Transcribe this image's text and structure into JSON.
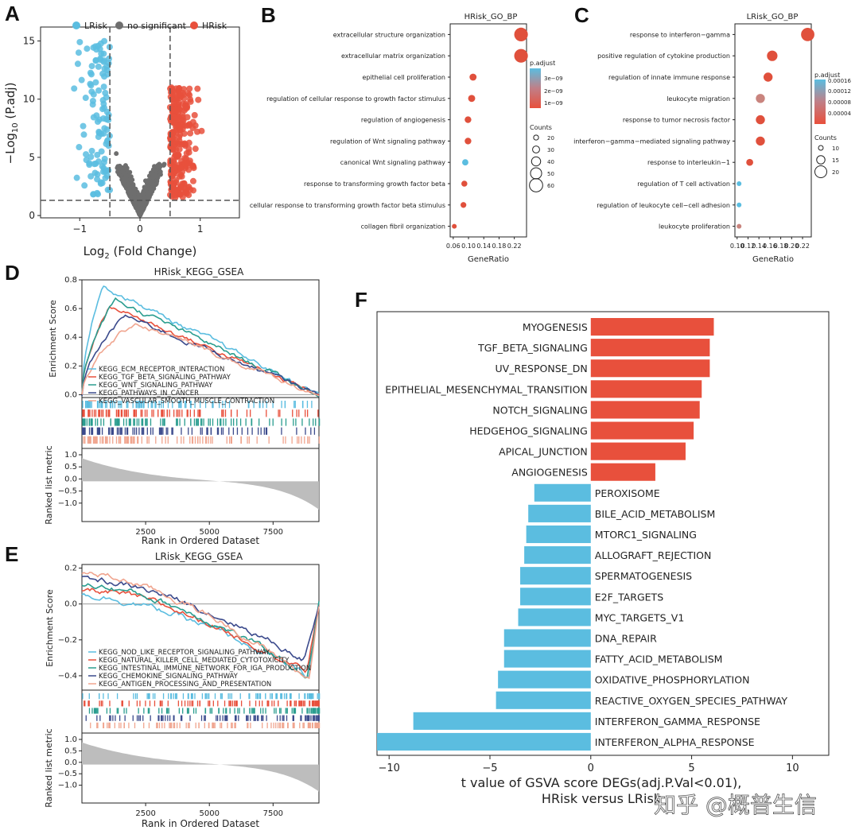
{
  "panels": {
    "A": "A",
    "B": "B",
    "C": "C",
    "D": "D",
    "E": "E",
    "F": "F"
  },
  "watermark": "知乎 @概普生信",
  "chart_data": [
    {
      "id": "A",
      "type": "scatter",
      "legend": [
        "LRisk",
        "no significant",
        "HRisk"
      ],
      "colors": {
        "LRisk": "#5bbde0",
        "no significant": "#6e6e6e",
        "HRisk": "#e8503c"
      },
      "xlabel_main": "Log",
      "xlabel_sub": "2",
      "xlabel_rest": " (Fold Change)",
      "ylabel_main": "−Log",
      "ylabel_sub": "10",
      "ylabel_rest": " (P.adj)",
      "xlim": [
        -1.65,
        1.65
      ],
      "ylim": [
        -0.2,
        16.2
      ],
      "xticks": [
        -1,
        0,
        1
      ],
      "yticks": [
        0,
        5,
        10,
        15
      ],
      "thresholds": {
        "x": [
          -0.5,
          0.5
        ],
        "y": 1.3
      }
    },
    {
      "id": "B",
      "type": "scatter",
      "title": "HRisk_GO_BP",
      "terms": [
        "extracellular structure organization",
        "extracellular matrix organization",
        "epithelial cell proliferation",
        "regulation of cellular response to growth factor stimulus",
        "regulation of angiogenesis",
        "regulation of Wnt signaling pathway",
        "canonical Wnt signaling pathway",
        "response to transforming growth factor beta",
        "cellular response to transforming growth factor beta stimulus",
        "collagen fibril organization"
      ],
      "gene_ratio": [
        0.21,
        0.21,
        0.105,
        0.102,
        0.094,
        0.094,
        0.088,
        0.086,
        0.084,
        0.064
      ],
      "counts": [
        62,
        62,
        30,
        30,
        28,
        28,
        26,
        25,
        24,
        19
      ],
      "padj": [
        2e-10,
        2e-10,
        5e-10,
        5e-10,
        6e-10,
        6e-10,
        3.2e-09,
        6e-10,
        6e-10,
        6e-10
      ],
      "xticks": [
        "0.06",
        "0.10",
        "0.14",
        "0.18",
        "0.22"
      ],
      "xlim": [
        0.055,
        0.222
      ],
      "xlabel": "GeneRatio",
      "legend_color_title": "p.adjust",
      "legend_color_ticks": [
        "3e−09",
        "2e−09",
        "1e−09"
      ],
      "legend_size_title": "Counts",
      "legend_size_values": [
        "20",
        "30",
        "40",
        "50",
        "60"
      ]
    },
    {
      "id": "C",
      "type": "scatter",
      "title": "LRisk_GO_BP",
      "terms": [
        "response to interferon−gamma",
        "positive regulation of cytokine production",
        "regulation of innate immune response",
        "leukocyte migration",
        "response to tumor necrosis factor",
        "interferon−gamma−mediated signaling pathway",
        "response to interleukin−1",
        "regulation of T cell activation",
        "regulation of leukocyte cell−cell adhesion",
        "leukocyte proliferation"
      ],
      "gene_ratio": [
        0.22,
        0.16,
        0.153,
        0.14,
        0.14,
        0.14,
        0.122,
        0.104,
        0.104,
        0.104
      ],
      "counts": [
        22,
        18,
        16,
        16,
        16,
        16,
        13,
        10,
        10,
        10
      ],
      "padj": [
        1e-06,
        1e-06,
        1e-06,
        5e-05,
        1e-06,
        1e-06,
        1e-06,
        0.00016,
        0.00013,
        0.0001
      ],
      "xticks": [
        "0.10",
        "0.12",
        "0.14",
        "0.16",
        "0.18",
        "0.20",
        "0.22"
      ],
      "xlim": [
        0.097,
        0.226
      ],
      "xlabel": "GeneRatio",
      "legend_color_title": "p.adjust",
      "legend_color_ticks": [
        "0.00016",
        "0.00012",
        "0.00008",
        "0.00004"
      ],
      "legend_size_title": "Counts",
      "legend_size_values": [
        "10",
        "15",
        "20"
      ]
    },
    {
      "id": "D",
      "type": "line",
      "title": "HRisk_KEGG_GSEA",
      "ylabel": "Enrichment Score",
      "ylabel2": "Ranked list metric",
      "xlabel": "Rank in Ordered Dataset",
      "yticks": [
        "0.8",
        "0.6",
        "0.4",
        "0.2",
        "0.0"
      ],
      "ylim": [
        -0.02,
        0.8
      ],
      "yticks2": [
        "1.0",
        "0.5",
        "0.0",
        "−0.5",
        "−1.0"
      ],
      "xticks": [
        "2500",
        "5000",
        "7500"
      ],
      "xlim": [
        0,
        9300
      ],
      "series": [
        {
          "name": "KEGG_ECM_RECEPTOR_INTERACTION",
          "color": "#5bbde0",
          "peak_x": 800,
          "peak": 0.76
        },
        {
          "name": "KEGG_TGF_BETA_SIGNALING_PATHWAY",
          "color": "#e8503c",
          "peak_x": 1100,
          "peak": 0.62
        },
        {
          "name": "KEGG_WNT_SIGNALING_PATHWAY",
          "color": "#2a9d8f",
          "peak_x": 1300,
          "peak": 0.66
        },
        {
          "name": "KEGG_PATHWAYS_IN_CANCER",
          "color": "#3b4a8c",
          "peak_x": 1700,
          "peak": 0.55
        },
        {
          "name": "KEGG_VASCULAR_SMOOTH_MUSCLE_CONTRACTION",
          "color": "#f0a58f",
          "peak_x": 2100,
          "peak": 0.5
        }
      ]
    },
    {
      "id": "E",
      "type": "line",
      "title": "LRisk_KEGG_GSEA",
      "ylabel": "Enrichment Score",
      "ylabel2": "Ranked list metric",
      "xlabel": "Rank in Ordered Dataset",
      "yticks": [
        "0.2",
        "0.0",
        "−0.2",
        "−0.4"
      ],
      "ylim": [
        -0.48,
        0.22
      ],
      "yticks2": [
        "1.0",
        "0.5",
        "0.0",
        "−0.5",
        "−1.0"
      ],
      "xticks": [
        "2500",
        "5000",
        "7500"
      ],
      "xlim": [
        0,
        9300
      ],
      "series": [
        {
          "name": "KEGG_NOD_LIKE_RECEPTOR_SIGNALING_PATHWAY",
          "color": "#5bbde0",
          "trough_x": 8900,
          "trough": -0.41
        },
        {
          "name": "KEGG_NATURAL_KILLER_CELL_MEDIATED_CYTOTOXICITY",
          "color": "#e8503c",
          "trough_x": 8800,
          "trough": -0.38
        },
        {
          "name": "KEGG_INTESTINAL_IMMUNE_NETWORK_FOR_IGA_PRODUCTION",
          "color": "#2a9d8f",
          "trough_x": 8850,
          "trough": -0.4
        },
        {
          "name": "KEGG_CHEMOKINE_SIGNALING_PATHWAY",
          "color": "#3b4a8c",
          "trough_x": 8700,
          "trough": -0.31
        },
        {
          "name": "KEGG_ANTIGEN_PROCESSING_AND_PRESENTATION",
          "color": "#f0a58f",
          "trough_x": 8900,
          "trough": -0.42
        }
      ]
    },
    {
      "id": "F",
      "type": "bar",
      "orientation": "horizontal",
      "categories": [
        "MYOGENESIS",
        "TGF_BETA_SIGNALING",
        "UV_RESPONSE_DN",
        "EPITHELIAL_MESENCHYMAL_TRANSITION",
        "NOTCH_SIGNALING",
        "HEDGEHOG_SIGNALING",
        "APICAL_JUNCTION",
        "ANGIOGENESIS",
        "PEROXISOME",
        "BILE_ACID_METABOLISM",
        "MTORC1_SIGNALING",
        "ALLOGRAFT_REJECTION",
        "SPERMATOGENESIS",
        "E2F_TARGETS",
        "MYC_TARGETS_V1",
        "DNA_REPAIR",
        "FATTY_ACID_METABOLISM",
        "OXIDATIVE_PHOSPHORYLATION",
        "REACTIVE_OXYGEN_SPECIES_PATHWAY",
        "INTERFERON_GAMMA_RESPONSE",
        "INTERFERON_ALPHA_RESPONSE"
      ],
      "values": [
        6.1,
        5.9,
        5.9,
        5.5,
        5.4,
        5.1,
        4.7,
        3.2,
        -2.8,
        -3.1,
        -3.2,
        -3.3,
        -3.5,
        -3.5,
        -3.6,
        -4.3,
        -4.3,
        -4.6,
        -4.7,
        -8.8,
        -10.6
      ],
      "xticks": [
        "−10",
        "−5",
        "0",
        "5",
        "10"
      ],
      "xlim": [
        -10.6,
        11.8
      ],
      "xlabel_line1": "t value of GSVA score DEGs(adj.P.Val<0.01),",
      "xlabel_line2": "HRisk versus LRisk",
      "colors": {
        "positive": "#e8503c",
        "negative": "#5bbde0"
      }
    }
  ]
}
